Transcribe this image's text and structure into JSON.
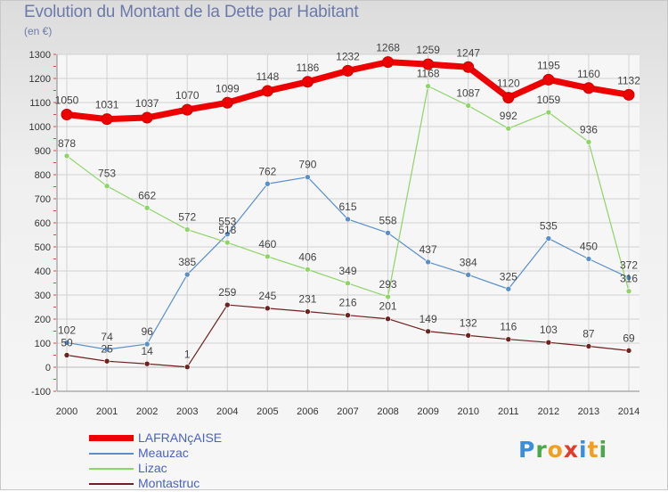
{
  "chart_data": {
    "type": "line",
    "title": "Evolution du Montant de la Dette par Habitant",
    "subtitle": "(en €)",
    "x": [
      "2000",
      "2001",
      "2002",
      "2003",
      "2004",
      "2005",
      "2006",
      "2007",
      "2008",
      "2009",
      "2010",
      "2011",
      "2012",
      "2013",
      "2014"
    ],
    "ylim": [
      -100,
      1300
    ],
    "yticks": [
      "-100",
      "0",
      "100",
      "200",
      "300",
      "400",
      "500",
      "600",
      "700",
      "800",
      "900",
      "1000",
      "1100",
      "1200",
      "1300"
    ],
    "grid": true,
    "legend_position": "bottom-left",
    "series": [
      {
        "name": "LAFRANçAISE",
        "color": "#ee0000",
        "values": [
          1050,
          1031,
          1037,
          1070,
          1099,
          1148,
          1186,
          1232,
          1268,
          1259,
          1247,
          1120,
          1195,
          1160,
          1132
        ],
        "labels": [
          "1050",
          "1031",
          "1037",
          "1070",
          "1099",
          "1148",
          "1186",
          "1232",
          "1268",
          "1259",
          "1247",
          "1120",
          "1195",
          "1160",
          "1132"
        ]
      },
      {
        "name": "Meauzac",
        "color": "#5b8fc7",
        "values": [
          102,
          74,
          96,
          385,
          553,
          762,
          790,
          615,
          558,
          437,
          384,
          325,
          535,
          450,
          372
        ],
        "labels": [
          "102",
          "74",
          "96",
          "385",
          "553",
          "762",
          "790",
          "615",
          "558",
          "437",
          "384",
          "325",
          "535",
          "450",
          "372"
        ]
      },
      {
        "name": "Lizac",
        "color": "#8fd468",
        "values": [
          878,
          753,
          662,
          572,
          518,
          460,
          406,
          349,
          293,
          1168,
          1087,
          992,
          1059,
          936,
          316
        ],
        "labels": [
          "878",
          "753",
          "662",
          "572",
          "518",
          "460",
          "406",
          "349",
          "293",
          "1168",
          "1087",
          "992",
          "1059",
          "936",
          "316"
        ]
      },
      {
        "name": "Montastruc",
        "color": "#6e2121",
        "values": [
          50,
          25,
          14,
          1,
          259,
          245,
          231,
          216,
          201,
          149,
          132,
          116,
          103,
          87,
          69
        ],
        "labels": [
          "50",
          "25",
          "14",
          "1",
          "259",
          "245",
          "231",
          "216",
          "201",
          "149",
          "132",
          "116",
          "103",
          "87",
          "69"
        ]
      }
    ]
  },
  "logo": {
    "p": "P",
    "r": "r",
    "o": "o",
    "x": "x",
    "i": "i",
    "t": "t",
    "i2": "i"
  }
}
